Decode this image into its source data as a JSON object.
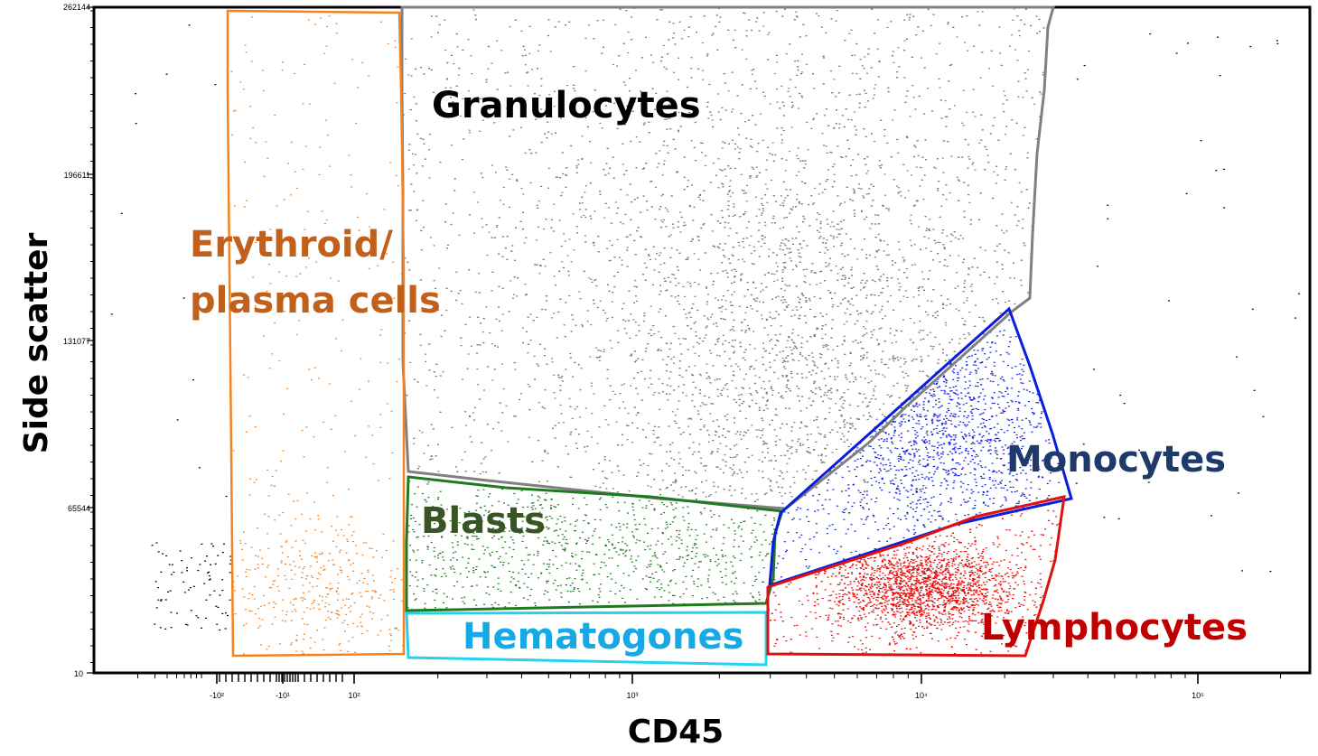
{
  "chart_data": {
    "type": "scatter",
    "xlabel": "CD45",
    "ylabel": "Side scatter",
    "x_scale": "biexponential",
    "y_scale": "linear",
    "ylim": [
      10,
      262144
    ],
    "y_ticks": [
      "262144",
      "196611",
      "131077",
      "65544",
      "10"
    ],
    "x_ticks": [
      "-10²",
      "-10¹",
      "10²",
      "10³",
      "10⁴",
      "10⁵"
    ],
    "grid": false,
    "gates": [
      {
        "name": "Granulocytes",
        "color": "#808080"
      },
      {
        "name": "Erythroid/",
        "name_line2": "plasma cells",
        "color": "#f5821f"
      },
      {
        "name": "Blasts",
        "color": "#1f7a1f"
      },
      {
        "name": "Hematogones",
        "color": "#22d3f0"
      },
      {
        "name": "Monocytes",
        "color": "#0a1edc"
      },
      {
        "name": "Lymphocytes",
        "color": "#e01010"
      }
    ],
    "label_colors": {
      "Granulocytes": "#000000",
      "Erythroid": "#c0601a",
      "Blasts": "#375623",
      "Hematogones": "#17a9e6",
      "Monocytes": "#1f3a6a",
      "Lymphocytes": "#c00000"
    }
  }
}
